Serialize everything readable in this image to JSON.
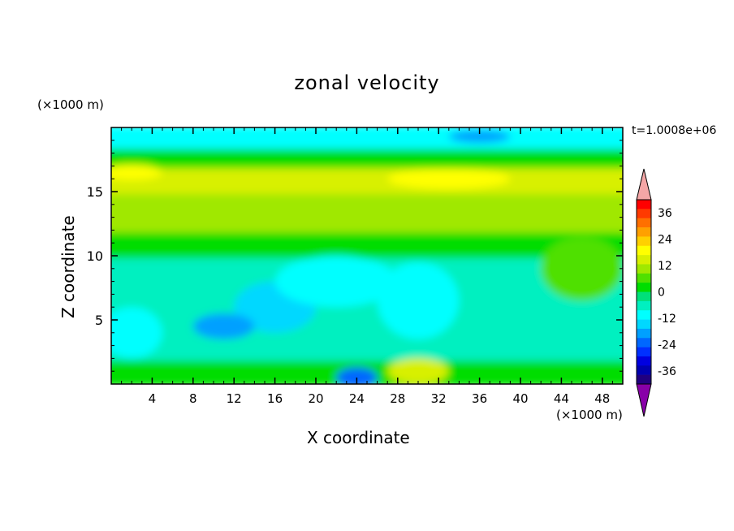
{
  "chart_data": {
    "type": "heatmap",
    "title": "zonal velocity",
    "xlabel": "X coordinate",
    "ylabel": "Z coordinate",
    "x_unit": "(×1000 m)",
    "y_unit": "(×1000 m)",
    "time_label": "t=1.0008e+06",
    "xlim": [
      0,
      50
    ],
    "ylim": [
      0,
      20
    ],
    "x_ticks": [
      "4",
      "8",
      "12",
      "16",
      "20",
      "24",
      "28",
      "32",
      "36",
      "40",
      "44",
      "48"
    ],
    "y_ticks": [
      "5",
      "10",
      "15"
    ],
    "colorbar": {
      "tick_labels": [
        "36",
        "24",
        "12",
        "0",
        "-12",
        "-24",
        "-36"
      ],
      "tick_values": [
        36,
        24,
        12,
        0,
        -12,
        -24,
        -36
      ],
      "range": [
        -42,
        42
      ],
      "colors_high_to_low": [
        "#f4a6a6",
        "#ff0000",
        "#ff3a00",
        "#ff7000",
        "#ffa000",
        "#ffd000",
        "#ffff00",
        "#d8f000",
        "#a0e800",
        "#50e000",
        "#00dd00",
        "#00e07a",
        "#00f0c0",
        "#00ffff",
        "#00d8ff",
        "#00a0ff",
        "#0068ff",
        "#0030ff",
        "#0000e0",
        "#0000b0",
        "#200080",
        "#8800a8"
      ]
    },
    "field_bands": [
      {
        "z_from": 0,
        "z_to": 2,
        "value": 3
      },
      {
        "z_from": 2,
        "z_to": 6,
        "value": -8
      },
      {
        "z_from": 6,
        "z_to": 10,
        "value": -6
      },
      {
        "z_from": 10,
        "z_to": 12,
        "value": 3
      },
      {
        "z_from": 12,
        "z_to": 15,
        "value": 9
      },
      {
        "z_from": 15,
        "z_to": 17,
        "value": 15
      },
      {
        "z_from": 17,
        "z_to": 18.5,
        "value": 2
      },
      {
        "z_from": 18.5,
        "z_to": 20,
        "value": -10
      }
    ],
    "field_patches": [
      {
        "x": 16,
        "z": 6,
        "rx": 4,
        "rz": 2,
        "value": -14
      },
      {
        "x": 11,
        "z": 4.5,
        "rx": 3,
        "rz": 1,
        "value": -20
      },
      {
        "x": 30,
        "z": 6.5,
        "rx": 4,
        "rz": 3,
        "value": -12
      },
      {
        "x": 22,
        "z": 8,
        "rx": 6,
        "rz": 2,
        "value": -10
      },
      {
        "x": 2,
        "z": 4,
        "rx": 3,
        "rz": 2,
        "value": -12
      },
      {
        "x": 46,
        "z": 9,
        "rx": 4,
        "rz": 2.5,
        "value": 8
      },
      {
        "x": 30,
        "z": 1,
        "rx": 3,
        "rz": 1,
        "value": 14
      },
      {
        "x": 24,
        "z": 0.5,
        "rx": 2,
        "rz": 0.8,
        "value": -22
      },
      {
        "x": 33,
        "z": 16,
        "rx": 6,
        "rz": 0.8,
        "value": 18
      },
      {
        "x": 2,
        "z": 16.5,
        "rx": 3,
        "rz": 0.6,
        "value": 18
      },
      {
        "x": 36,
        "z": 19.3,
        "rx": 3,
        "rz": 0.5,
        "value": -18
      }
    ]
  }
}
